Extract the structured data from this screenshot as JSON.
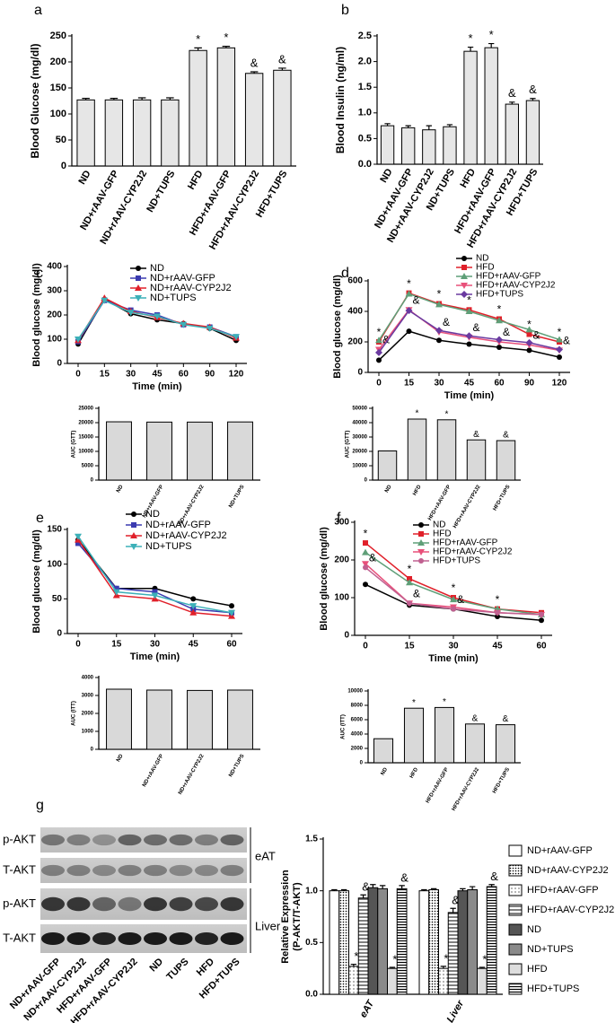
{
  "chart_data": [
    {
      "type": "bar",
      "panel": "a",
      "ylabel": "Blood Glucose (mg/dl)",
      "categories": [
        "ND",
        "ND+rAAV-GFP",
        "ND+rAAV-CYP2J2",
        "ND+TUPS",
        "HFD",
        "HFD+rAAV-GFP",
        "HFD+rAAV-CYP2J2",
        "HFD+TUPS"
      ],
      "values": [
        127,
        127,
        127,
        127,
        222,
        227,
        178,
        184
      ],
      "errors": [
        3,
        3,
        4,
        4,
        5,
        3,
        3,
        4
      ],
      "significance": [
        null,
        null,
        null,
        null,
        "*",
        "*",
        "&",
        "&"
      ],
      "color": "#e6e6e6",
      "ylim": [
        0,
        250
      ],
      "yticks": [
        0,
        50,
        100,
        150,
        200,
        250
      ]
    },
    {
      "type": "bar",
      "panel": "b",
      "ylabel": "Blood Insulin (ng/ml)",
      "categories": [
        "ND",
        "ND+rAAV-GFP",
        "ND+rAAV-CYP2J2",
        "ND+TUPS",
        "HFD",
        "HFD+rAAV-GFP",
        "HFD+rAAV-CYP2J2",
        "HFD+TUPS"
      ],
      "values": [
        0.75,
        0.71,
        0.67,
        0.73,
        2.2,
        2.27,
        1.17,
        1.24
      ],
      "errors": [
        0.04,
        0.04,
        0.08,
        0.04,
        0.08,
        0.08,
        0.04,
        0.04
      ],
      "significance": [
        null,
        null,
        null,
        null,
        "*",
        "*",
        "&",
        "&"
      ],
      "color": "#e6e6e6",
      "ylim": [
        0,
        2.5
      ],
      "yticks": [
        {
          "value": 0,
          "label": "0.0"
        },
        {
          "value": 0.5,
          "label": "0.5"
        },
        {
          "value": 1,
          "label": "1.0"
        },
        {
          "value": 1.5,
          "label": "1.5"
        },
        {
          "value": 2,
          "label": "2.0"
        },
        {
          "value": 2.5,
          "label": "2.5"
        }
      ]
    },
    {
      "type": "line",
      "panel": "c",
      "ylabel": "Blood glucose (mg/dl)",
      "xlabel": "Time (min)",
      "categories": [
        "0",
        "15",
        "30",
        "45",
        "60",
        "90",
        "120"
      ],
      "ylim": [
        0,
        400
      ],
      "yticks": [
        0,
        100,
        200,
        300,
        400
      ],
      "legend": "upper right",
      "series": [
        {
          "name": "ND",
          "color": "#000000",
          "marker": "circle",
          "values": [
            80,
            265,
            205,
            180,
            165,
            145,
            95
          ]
        },
        {
          "name": "ND+rAAV-GFP",
          "color": "#3b3bb0",
          "marker": "square",
          "values": [
            90,
            260,
            220,
            200,
            160,
            150,
            110
          ]
        },
        {
          "name": "ND+rAAV-CYP2J2",
          "color": "#e0202a",
          "marker": "triangle",
          "values": [
            95,
            270,
            215,
            190,
            165,
            150,
            105
          ]
        },
        {
          "name": "ND+TUPS",
          "color": "#3cb0b8",
          "marker": "triangle-down",
          "values": [
            100,
            260,
            210,
            195,
            160,
            145,
            110
          ]
        }
      ]
    },
    {
      "type": "bar",
      "ylabel": "AUC (GTT)",
      "categories": [
        "ND",
        "ND+rAAV-GFP",
        "ND+rAAV-CYP2J2",
        "ND+TUPS"
      ],
      "values": [
        20300,
        20200,
        20200,
        20250
      ],
      "color": "#d9d9d9",
      "ylim": [
        0,
        25000
      ],
      "yticks": [
        0,
        5000,
        10000,
        15000,
        20000,
        25000
      ]
    },
    {
      "type": "line",
      "panel": "d",
      "ylabel": "Blood glucose (mg/dl)",
      "xlabel": "Time (min)",
      "categories": [
        "0",
        "15",
        "30",
        "45",
        "60",
        "90",
        "120"
      ],
      "ylim": [
        0,
        600
      ],
      "yticks": [
        0,
        200,
        400,
        600
      ],
      "legend": "upper right",
      "series": [
        {
          "name": "ND",
          "color": "#000000",
          "marker": "circle",
          "values": [
            80,
            270,
            210,
            185,
            165,
            145,
            100
          ]
        },
        {
          "name": "HFD",
          "color": "#e0202a",
          "marker": "square",
          "values": [
            200,
            520,
            450,
            410,
            350,
            250,
            200
          ],
          "significance": [
            "*",
            "*",
            "*",
            "*",
            "*",
            "*",
            "*"
          ]
        },
        {
          "name": "HFD+rAAV-GFP",
          "color": "#5f9f78",
          "marker": "triangle",
          "values": [
            210,
            515,
            445,
            400,
            340,
            280,
            215
          ]
        },
        {
          "name": "HFD+rAAV-CYP2J2",
          "color": "#e8507a",
          "marker": "triangle-down",
          "values": [
            150,
            410,
            265,
            230,
            200,
            180,
            145
          ],
          "significance": [
            "&",
            "&",
            "&",
            "&",
            "&",
            "&",
            "&"
          ]
        },
        {
          "name": "HFD+TUPS",
          "color": "#6a3aa0",
          "marker": "diamond",
          "values": [
            130,
            405,
            275,
            240,
            215,
            195,
            150
          ]
        }
      ]
    },
    {
      "type": "bar",
      "ylabel": "AUC (GTT)",
      "categories": [
        "ND",
        "HFD",
        "HFD+rAAV-GFP",
        "HFD+rAAV-CYP2J2",
        "HFD+TUPS"
      ],
      "values": [
        20300,
        42500,
        42000,
        28000,
        27500
      ],
      "significance": [
        null,
        "*",
        "*",
        "&",
        "&"
      ],
      "color": "#d9d9d9",
      "ylim": [
        0,
        50000
      ],
      "yticks": [
        0,
        10000,
        20000,
        30000,
        40000,
        50000
      ]
    },
    {
      "type": "line",
      "panel": "e",
      "ylabel": "Blood glucose (mg/dl)",
      "xlabel": "Time (min)",
      "categories": [
        "0",
        "15",
        "30",
        "45",
        "60"
      ],
      "ylim": [
        0,
        150
      ],
      "yticks": [
        0,
        50,
        100,
        150
      ],
      "legend": "upper right",
      "series": [
        {
          "name": "ND",
          "color": "#000000",
          "marker": "circle",
          "values": [
            135,
            65,
            65,
            50,
            40
          ]
        },
        {
          "name": "ND+rAAV-GFP",
          "color": "#3b3bb0",
          "marker": "square",
          "values": [
            130,
            65,
            60,
            35,
            30
          ]
        },
        {
          "name": "ND+rAAV-CYP2J2",
          "color": "#e0202a",
          "marker": "triangle",
          "values": [
            135,
            55,
            50,
            30,
            25
          ]
        },
        {
          "name": "ND+TUPS",
          "color": "#3cb0b8",
          "marker": "triangle-down",
          "values": [
            140,
            60,
            55,
            40,
            30
          ]
        }
      ]
    },
    {
      "type": "bar",
      "ylabel": "AUC (ITT)",
      "categories": [
        "ND",
        "ND+rAAV-GFP",
        "ND+rAAV-CYP2J2",
        "ND+TUPS"
      ],
      "values": [
        3350,
        3300,
        3280,
        3300
      ],
      "color": "#d9d9d9",
      "ylim": [
        0,
        4000
      ],
      "yticks": [
        0,
        1000,
        2000,
        3000,
        4000
      ]
    },
    {
      "type": "line",
      "panel": "f",
      "ylabel": "Blood glucose (mg/dl)",
      "xlabel": "Time (min)",
      "categories": [
        "0",
        "15",
        "30",
        "45",
        "60"
      ],
      "ylim": [
        0,
        300
      ],
      "yticks": [
        0,
        100,
        200,
        300
      ],
      "legend": "upper right",
      "series": [
        {
          "name": "ND",
          "color": "#000000",
          "marker": "circle",
          "values": [
            135,
            80,
            70,
            50,
            40
          ]
        },
        {
          "name": "HFD",
          "color": "#e0202a",
          "marker": "square",
          "values": [
            245,
            150,
            100,
            70,
            60
          ],
          "significance": [
            "*",
            "*",
            "*",
            "*",
            null
          ]
        },
        {
          "name": "HFD+rAAV-GFP",
          "color": "#5f9f78",
          "marker": "triangle",
          "values": [
            220,
            140,
            95,
            70,
            55
          ]
        },
        {
          "name": "HFD+rAAV-CYP2J2",
          "color": "#e8507a",
          "marker": "triangle-down",
          "values": [
            190,
            85,
            75,
            60,
            55
          ]
        },
        {
          "name": "HFD+TUPS",
          "color": "#c06090",
          "marker": "circle",
          "values": [
            180,
            85,
            70,
            60,
            55
          ],
          "significance": [
            "&",
            "&",
            "&",
            null,
            null
          ]
        }
      ]
    },
    {
      "type": "bar",
      "ylabel": "AUC (ITT)",
      "categories": [
        "ND",
        "HFD",
        "HFD+rAAV-GFP",
        "HFD+rAAV-CYP2J2",
        "HFD+TUPS"
      ],
      "values": [
        3350,
        7600,
        7700,
        5400,
        5300
      ],
      "significance": [
        null,
        "*",
        "*",
        "&",
        "&"
      ],
      "color": "#d9d9d9",
      "ylim": [
        0,
        10000
      ],
      "yticks": [
        0,
        2000,
        4000,
        6000,
        8000,
        10000
      ]
    },
    {
      "type": "grouped-bar",
      "panel": "g",
      "ylabel": [
        "Relative Expression",
        "(P-AKT/T-AKT)"
      ],
      "categories": [
        "eAT",
        "Liver"
      ],
      "ylim": [
        0,
        1.5
      ],
      "yticks": [
        {
          "value": 0,
          "label": "0.0"
        },
        {
          "value": 0.5,
          "label": "0.5"
        },
        {
          "value": 1,
          "label": "1.0"
        },
        {
          "value": 1.5,
          "label": "1.5"
        }
      ],
      "series": [
        {
          "name": "ND+rAAV-GFP",
          "color": "#ffffff",
          "pattern": "none",
          "values": [
            1.0,
            1.0
          ],
          "errors": [
            0.01,
            0.01
          ]
        },
        {
          "name": "ND+rAAV-CYP2J2",
          "color": "#ffffff",
          "pattern": "dots",
          "values": [
            1.0,
            1.01
          ],
          "errors": [
            0.01,
            0.01
          ]
        },
        {
          "name": "HFD+rAAV-GFP",
          "color": "#ffffff",
          "pattern": "sparse-dots",
          "values": [
            0.27,
            0.25
          ],
          "errors": [
            0.02,
            0.02
          ],
          "significance": [
            "*",
            "*"
          ]
        },
        {
          "name": "HFD+rAAV-CYP2J2",
          "color": "#ffffff",
          "pattern": "hlines",
          "values": [
            0.93,
            0.79
          ],
          "errors": [
            0.03,
            0.04
          ],
          "significance": [
            "&",
            "&"
          ]
        },
        {
          "name": "ND",
          "color": "#555555",
          "pattern": "none",
          "values": [
            1.03,
            1.0
          ],
          "errors": [
            0.03,
            0.02
          ]
        },
        {
          "name": "ND+TUPS",
          "color": "#8a8a8a",
          "pattern": "none",
          "values": [
            1.02,
            1.01
          ],
          "errors": [
            0.03,
            0.03
          ]
        },
        {
          "name": "HFD",
          "color": "#dddddd",
          "pattern": "none",
          "values": [
            0.25,
            0.25
          ],
          "errors": [
            0.01,
            0.01
          ],
          "significance": [
            "*",
            "*"
          ]
        },
        {
          "name": "HFD+TUPS",
          "color": "#ffffff",
          "pattern": "dense-hlines",
          "values": [
            1.02,
            1.04
          ],
          "errors": [
            0.03,
            0.02
          ],
          "significance": [
            "&",
            "&"
          ]
        }
      ]
    }
  ],
  "blot": {
    "rows": [
      "p-AKT",
      "T-AKT",
      "p-AKT",
      "T-AKT"
    ],
    "tissues": [
      "eAT",
      "Liver"
    ],
    "lanes": [
      "ND+rAAV-GFP",
      "ND+rAAV-CYP2J2",
      "HFD+rAAV-GFP",
      "HFD+rAAV-CYP2J2",
      "ND",
      "TUPS",
      "HFD",
      "HFD+TUPS"
    ]
  }
}
